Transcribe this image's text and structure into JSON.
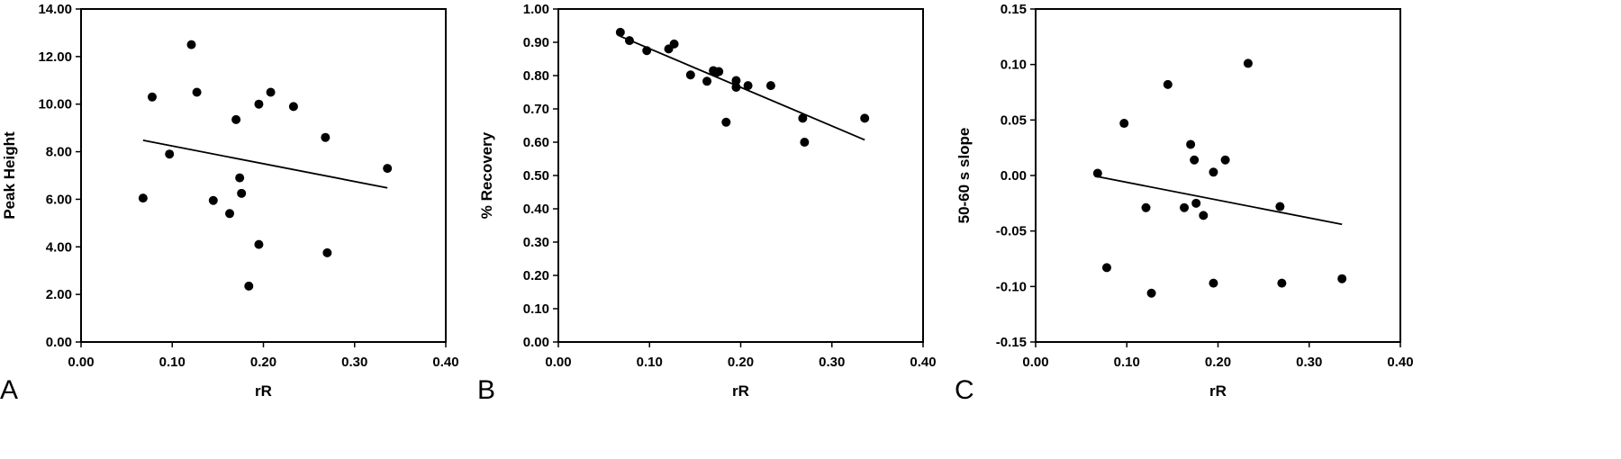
{
  "chart_data": [
    {
      "type": "scatter",
      "panel_letter": "A",
      "xlabel": "rR",
      "ylabel": "Peak Height",
      "xlim": [
        0.0,
        0.4
      ],
      "ylim": [
        0.0,
        14.0
      ],
      "x_ticks": [
        "0.00",
        "0.10",
        "0.20",
        "0.30",
        "0.40"
      ],
      "y_ticks": [
        "0.00",
        "2.00",
        "4.00",
        "6.00",
        "8.00",
        "10.00",
        "12.00",
        "14.00"
      ],
      "points": [
        {
          "x": 0.068,
          "y": 6.05
        },
        {
          "x": 0.078,
          "y": 10.3
        },
        {
          "x": 0.097,
          "y": 7.9
        },
        {
          "x": 0.121,
          "y": 12.5
        },
        {
          "x": 0.127,
          "y": 10.5
        },
        {
          "x": 0.145,
          "y": 5.95
        },
        {
          "x": 0.163,
          "y": 5.4
        },
        {
          "x": 0.17,
          "y": 9.35
        },
        {
          "x": 0.174,
          "y": 6.9
        },
        {
          "x": 0.176,
          "y": 6.25
        },
        {
          "x": 0.184,
          "y": 2.35
        },
        {
          "x": 0.195,
          "y": 10.0
        },
        {
          "x": 0.195,
          "y": 4.1
        },
        {
          "x": 0.208,
          "y": 10.5
        },
        {
          "x": 0.233,
          "y": 9.9
        },
        {
          "x": 0.268,
          "y": 8.6
        },
        {
          "x": 0.27,
          "y": 3.75
        },
        {
          "x": 0.336,
          "y": 7.3
        }
      ],
      "trendline": [
        {
          "x": 0.068,
          "y": 8.48
        },
        {
          "x": 0.336,
          "y": 6.48
        }
      ],
      "grid": false
    },
    {
      "type": "scatter",
      "panel_letter": "B",
      "xlabel": "rR",
      "ylabel": "% Recovery",
      "xlim": [
        0.0,
        0.4
      ],
      "ylim": [
        0.0,
        1.0
      ],
      "x_ticks": [
        "0.00",
        "0.10",
        "0.20",
        "0.30",
        "0.40"
      ],
      "y_ticks": [
        "0.00",
        "0.10",
        "0.20",
        "0.30",
        "0.40",
        "0.50",
        "0.60",
        "0.70",
        "0.80",
        "0.90",
        "1.00"
      ],
      "points": [
        {
          "x": 0.068,
          "y": 0.93
        },
        {
          "x": 0.078,
          "y": 0.905
        },
        {
          "x": 0.097,
          "y": 0.875
        },
        {
          "x": 0.121,
          "y": 0.88
        },
        {
          "x": 0.127,
          "y": 0.895
        },
        {
          "x": 0.145,
          "y": 0.802
        },
        {
          "x": 0.163,
          "y": 0.783
        },
        {
          "x": 0.17,
          "y": 0.815
        },
        {
          "x": 0.174,
          "y": 0.81
        },
        {
          "x": 0.176,
          "y": 0.812
        },
        {
          "x": 0.184,
          "y": 0.66
        },
        {
          "x": 0.195,
          "y": 0.785
        },
        {
          "x": 0.195,
          "y": 0.765
        },
        {
          "x": 0.208,
          "y": 0.77
        },
        {
          "x": 0.233,
          "y": 0.77
        },
        {
          "x": 0.268,
          "y": 0.672
        },
        {
          "x": 0.27,
          "y": 0.6
        },
        {
          "x": 0.336,
          "y": 0.672
        }
      ],
      "trendline": [
        {
          "x": 0.068,
          "y": 0.918
        },
        {
          "x": 0.336,
          "y": 0.607
        }
      ],
      "grid": false
    },
    {
      "type": "scatter",
      "panel_letter": "C",
      "xlabel": "rR",
      "ylabel": "50-60 s slope",
      "xlim": [
        0.0,
        0.4
      ],
      "ylim": [
        -0.15,
        0.15
      ],
      "x_ticks": [
        "0.00",
        "0.10",
        "0.20",
        "0.30",
        "0.40"
      ],
      "y_ticks": [
        "-0.15",
        "-0.10",
        "-0.05",
        "0.00",
        "0.05",
        "0.10",
        "0.15"
      ],
      "points": [
        {
          "x": 0.068,
          "y": 0.002
        },
        {
          "x": 0.078,
          "y": -0.083
        },
        {
          "x": 0.097,
          "y": 0.047
        },
        {
          "x": 0.121,
          "y": -0.029
        },
        {
          "x": 0.127,
          "y": -0.106
        },
        {
          "x": 0.145,
          "y": 0.082
        },
        {
          "x": 0.163,
          "y": -0.029
        },
        {
          "x": 0.17,
          "y": 0.028
        },
        {
          "x": 0.174,
          "y": 0.014
        },
        {
          "x": 0.176,
          "y": -0.025
        },
        {
          "x": 0.184,
          "y": -0.036
        },
        {
          "x": 0.195,
          "y": 0.003
        },
        {
          "x": 0.195,
          "y": -0.097
        },
        {
          "x": 0.208,
          "y": 0.014
        },
        {
          "x": 0.233,
          "y": 0.101
        },
        {
          "x": 0.268,
          "y": -0.028
        },
        {
          "x": 0.27,
          "y": -0.097
        },
        {
          "x": 0.336,
          "y": -0.093
        }
      ],
      "trendline": [
        {
          "x": 0.068,
          "y": -0.001
        },
        {
          "x": 0.336,
          "y": -0.044
        }
      ],
      "grid": false
    }
  ]
}
